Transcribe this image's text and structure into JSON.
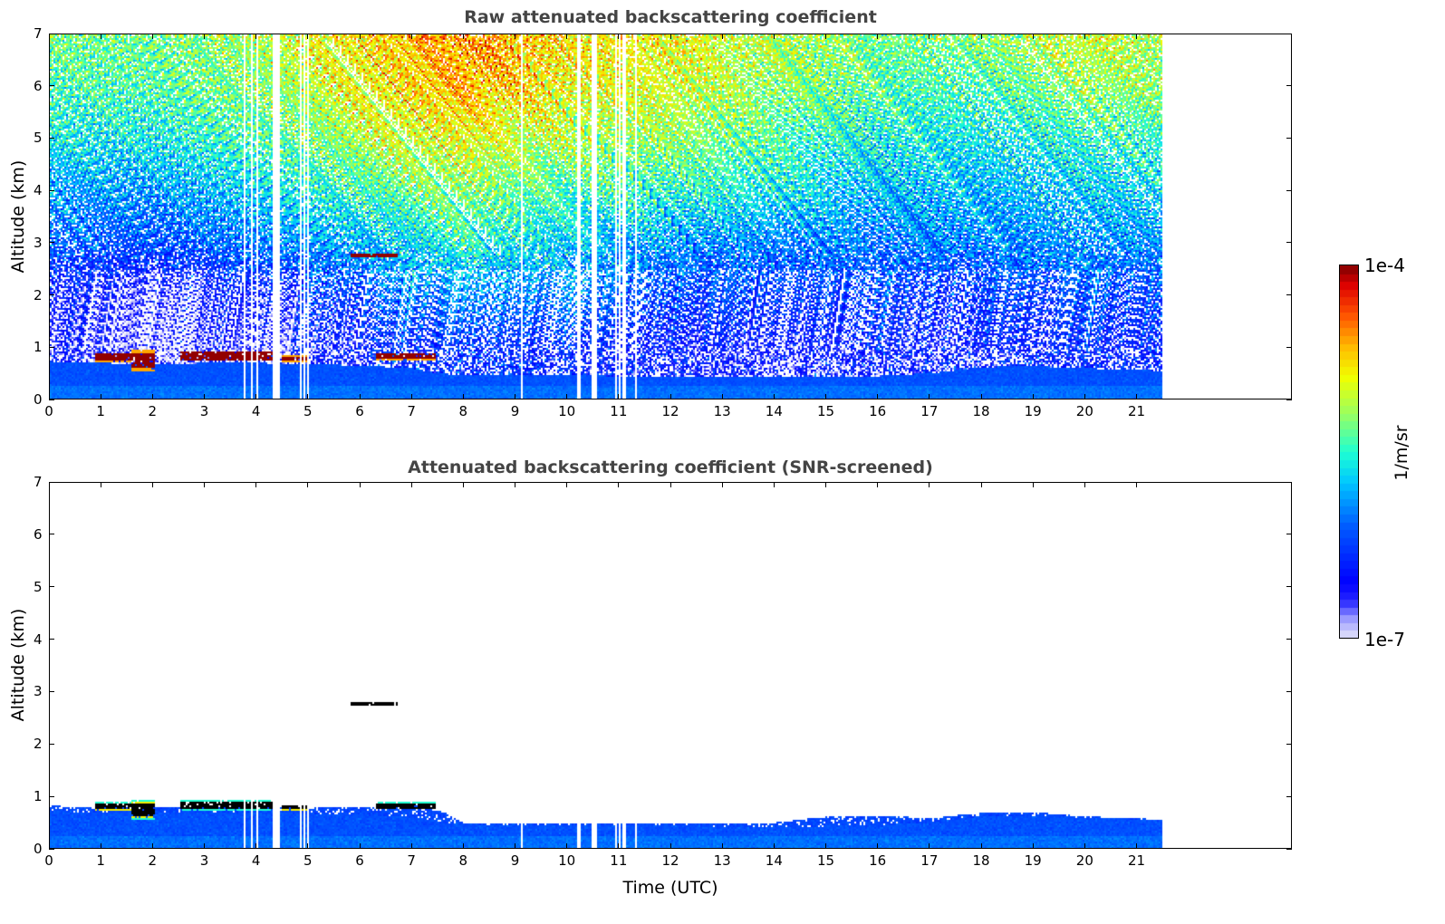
{
  "chart_data": [
    {
      "type": "heatmap",
      "title": "Raw attenuated backscattering coefficient",
      "xlabel": "",
      "ylabel": "Altitude (km)",
      "xlim": [
        0,
        24
      ],
      "ylim": [
        0,
        7
      ],
      "xticks": [
        "0",
        "1",
        "2",
        "3",
        "4",
        "5",
        "6",
        "7",
        "8",
        "9",
        "10",
        "11",
        "12",
        "13",
        "14",
        "15",
        "16",
        "17",
        "18",
        "19",
        "20",
        "21"
      ],
      "yticks": [
        "0",
        "1",
        "2",
        "3",
        "4",
        "5",
        "6",
        "7"
      ],
      "screened": false
    },
    {
      "type": "heatmap",
      "title": "Attenuated backscattering coefficient (SNR-screened)",
      "xlabel": "Time (UTC)",
      "ylabel": "Altitude (km)",
      "xlim": [
        0,
        24
      ],
      "ylim": [
        0,
        7
      ],
      "xticks": [
        "0",
        "1",
        "2",
        "3",
        "4",
        "5",
        "6",
        "7",
        "8",
        "9",
        "10",
        "11",
        "12",
        "13",
        "14",
        "15",
        "16",
        "17",
        "18",
        "19",
        "20",
        "21"
      ],
      "yticks": [
        "0",
        "1",
        "2",
        "3",
        "4",
        "5",
        "6",
        "7"
      ],
      "screened": true
    }
  ],
  "shared_data": {
    "data_end_time": 21.5,
    "gaps_utc": [
      [
        3.72,
        3.76
      ],
      [
        3.88,
        3.92
      ],
      [
        3.96,
        4.0
      ],
      [
        4.29,
        4.44
      ],
      [
        4.81,
        4.84
      ],
      [
        4.9,
        4.93
      ],
      [
        4.97,
        5.0
      ],
      [
        9.08,
        9.11
      ],
      [
        10.17,
        10.26
      ],
      [
        10.45,
        10.55
      ],
      [
        10.9,
        10.94
      ],
      [
        10.99,
        11.03
      ],
      [
        11.07,
        11.12
      ],
      [
        11.29,
        11.33
      ]
    ],
    "boundary_layer_top_km": {
      "time": [
        0,
        1,
        2,
        3,
        4,
        5,
        6,
        7,
        7.5,
        8,
        10,
        12,
        14,
        16,
        17,
        18,
        19,
        20,
        21.5
      ],
      "top": [
        0.72,
        0.7,
        0.68,
        0.7,
        0.7,
        0.68,
        0.65,
        0.6,
        0.5,
        0.47,
        0.46,
        0.44,
        0.42,
        0.45,
        0.5,
        0.62,
        0.64,
        0.6,
        0.55
      ]
    },
    "screened_layer_top_km": {
      "time": [
        0,
        1,
        2,
        3,
        4,
        5,
        6,
        7,
        7.6,
        8,
        10,
        12,
        14,
        15,
        16,
        17,
        18,
        19,
        20,
        21.5
      ],
      "top": [
        0.82,
        0.8,
        0.8,
        0.82,
        0.8,
        0.78,
        0.8,
        0.85,
        0.7,
        0.48,
        0.5,
        0.5,
        0.5,
        0.62,
        0.62,
        0.6,
        0.68,
        0.7,
        0.62,
        0.56
      ]
    },
    "clouds": [
      {
        "start": 0.85,
        "end": 1.55,
        "base": 0.72,
        "top": 0.9
      },
      {
        "start": 1.55,
        "end": 2.0,
        "base": 0.55,
        "top": 0.95
      },
      {
        "start": 2.5,
        "end": 4.3,
        "base": 0.74,
        "top": 0.94
      },
      {
        "start": 4.45,
        "end": 5.0,
        "base": 0.73,
        "top": 0.85
      },
      {
        "start": 6.3,
        "end": 7.45,
        "base": 0.75,
        "top": 0.9
      },
      {
        "start": 5.8,
        "end": 6.7,
        "base": 2.74,
        "top": 2.82
      }
    ],
    "background_log10": {
      "time": [
        0,
        2,
        4,
        6,
        8,
        10,
        12,
        14,
        16,
        18,
        20,
        21.5
      ],
      "altitude_km": [
        1,
        2,
        3,
        4,
        5,
        6,
        7
      ],
      "values": [
        [
          -6.6,
          -6.8,
          -6.7,
          -6.5,
          -6.3,
          -6.4,
          -6.5,
          -6.6,
          -6.5,
          -6.5,
          -6.4,
          -6.4
        ],
        [
          -6.5,
          -6.7,
          -6.5,
          -6.2,
          -5.9,
          -6.0,
          -6.2,
          -6.3,
          -6.3,
          -6.3,
          -6.2,
          -6.2
        ],
        [
          -6.1,
          -6.2,
          -6.0,
          -5.8,
          -5.5,
          -5.7,
          -5.9,
          -6.0,
          -6.0,
          -6.0,
          -5.9,
          -5.9
        ],
        [
          -5.9,
          -5.9,
          -5.7,
          -5.4,
          -5.2,
          -5.4,
          -5.5,
          -5.6,
          -5.8,
          -5.8,
          -5.7,
          -5.7
        ],
        [
          -5.6,
          -5.6,
          -5.4,
          -5.1,
          -4.9,
          -5.1,
          -5.2,
          -5.4,
          -5.6,
          -5.6,
          -5.5,
          -5.5
        ],
        [
          -5.4,
          -5.4,
          -5.2,
          -4.9,
          -4.6,
          -4.9,
          -5.0,
          -5.2,
          -5.4,
          -5.4,
          -5.2,
          -5.2
        ],
        [
          -5.3,
          -5.3,
          -5.1,
          -4.8,
          -4.5,
          -4.8,
          -4.9,
          -5.1,
          -5.3,
          -5.2,
          -5.0,
          -5.1
        ]
      ]
    }
  },
  "colorbar": {
    "label": "1/m/sr",
    "max_label": "1e-4",
    "min_label": "1e-7",
    "min_log10": -7,
    "max_log10": -4
  }
}
